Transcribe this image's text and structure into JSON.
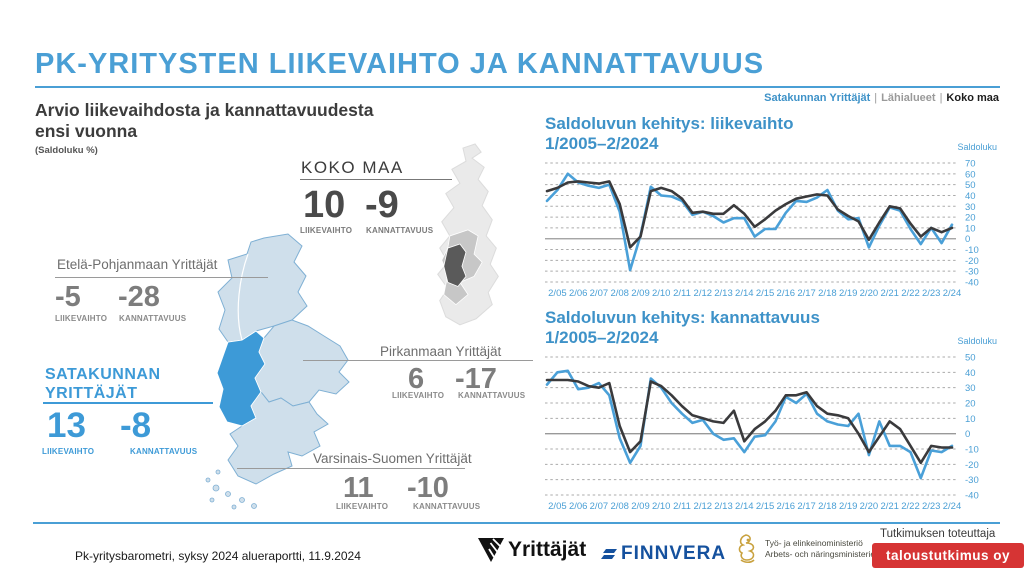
{
  "colors": {
    "accent_blue": "#4A9FD5",
    "chart_title_blue": "#3E92C8",
    "map_highlight": "#3D9AD7",
    "map_light": "#CFDFEB",
    "finnvera_blue": "#15519E",
    "research_red": "#D63434",
    "line_satakunta": "#4AA0D8",
    "line_koko_maa": "#3A3A3C"
  },
  "header": {
    "title": "PK-YRITYSTEN LIIKEVAIHTO JA KANNATTAVUUS",
    "nav_separator": "|",
    "nav": [
      {
        "label": "Satakunnan Yrittäjät"
      },
      {
        "label": "Lähialueet"
      },
      {
        "label": "Koko maa"
      }
    ]
  },
  "left_panel": {
    "subtitle_line1": "Arvio liikevaihdosta ja kannattavuudesta",
    "subtitle_line2": "ensi vuonna",
    "unit_note": "(Saldoluku %)",
    "label_liikevaihto": "LIIKEVAIHTO",
    "label_kannattavuus": "KANNATTAVUUS",
    "regions": {
      "koko_maa": {
        "name": "KOKO MAA",
        "liikevaihto": "10",
        "kannattavuus": "-9"
      },
      "etela_pohjanmaa": {
        "name": "Etelä-Pohjanmaan Yrittäjät",
        "liikevaihto": "-5",
        "kannattavuus": "-28"
      },
      "satakunta": {
        "name_line1": "SATAKUNNAN",
        "name_line2": "YRITTÄJÄT",
        "liikevaihto": "13",
        "kannattavuus": "-8"
      },
      "pirkanmaa": {
        "name": "Pirkanmaan Yrittäjät",
        "liikevaihto": "6",
        "kannattavuus": "-17"
      },
      "varsinais_suomi": {
        "name": "Varsinais-Suomen Yrittäjät",
        "liikevaihto": "11",
        "kannattavuus": "-10"
      }
    }
  },
  "chart_data": [
    {
      "type": "line",
      "title": "Saldoluvun kehitys: liikevaihto",
      "subtitle": "1/2005–2/2024",
      "ylabel": "Saldoluku",
      "ylim": [
        -40,
        70
      ],
      "ytick_step": 10,
      "grid": "dashed-horizontal",
      "legend_position": "none",
      "x_tick_labels": [
        "2/05",
        "2/06",
        "2/07",
        "2/08",
        "2/09",
        "2/10",
        "2/11",
        "2/12",
        "2/13",
        "2/14",
        "2/15",
        "2/16",
        "2/17",
        "2/18",
        "2/19",
        "2/20",
        "2/21",
        "2/22",
        "2/23",
        "2/24"
      ],
      "x_note": "two points per year, 1/2005 through 2/2024",
      "series": [
        {
          "name": "Satakunnan Yrittäjät",
          "color": "#4AA0D8",
          "values": [
            35,
            45,
            60,
            52,
            49,
            47,
            50,
            25,
            -29,
            3,
            48,
            40,
            39,
            35,
            22,
            25,
            21,
            15,
            19,
            19,
            2,
            9,
            9,
            24,
            35,
            34,
            38,
            45,
            26,
            18,
            19,
            -8,
            12,
            29,
            26,
            9,
            -5,
            10,
            -4,
            13
          ]
        },
        {
          "name": "Koko maa",
          "color": "#3A3A3C",
          "values": [
            44,
            47,
            52,
            53,
            52,
            51,
            53,
            32,
            -8,
            2,
            44,
            47,
            44,
            37,
            24,
            25,
            23,
            23,
            31,
            23,
            11,
            18,
            26,
            32,
            37,
            39,
            41,
            40,
            27,
            21,
            16,
            -1,
            15,
            30,
            28,
            14,
            2,
            10,
            6,
            10
          ]
        }
      ]
    },
    {
      "type": "line",
      "title": "Saldoluvun kehitys: kannattavuus",
      "subtitle": "1/2005–2/2024",
      "ylabel": "Saldoluku",
      "ylim": [
        -40,
        50
      ],
      "ytick_step": 10,
      "grid": "dashed-horizontal",
      "legend_position": "none",
      "x_tick_labels": [
        "2/05",
        "2/06",
        "2/07",
        "2/08",
        "2/09",
        "2/10",
        "2/11",
        "2/12",
        "2/13",
        "2/14",
        "2/15",
        "2/16",
        "2/17",
        "2/18",
        "2/19",
        "2/20",
        "2/21",
        "2/22",
        "2/23",
        "2/24"
      ],
      "x_note": "two points per year, 1/2005 through 2/2024",
      "series": [
        {
          "name": "Satakunnan Yrittäjät",
          "color": "#4AA0D8",
          "values": [
            32,
            40,
            41,
            29,
            30,
            33,
            25,
            -3,
            -19,
            -8,
            36,
            30,
            20,
            13,
            7,
            9,
            0,
            -4,
            -3,
            -12,
            -2,
            -1,
            8,
            24,
            20,
            26,
            13,
            8,
            6,
            5,
            13,
            -14,
            8,
            -8,
            -8,
            -12,
            -29,
            -11,
            -12,
            -8
          ]
        },
        {
          "name": "Koko maa",
          "color": "#3A3A3C",
          "values": [
            35,
            35,
            35,
            34,
            31,
            30,
            33,
            5,
            -12,
            -5,
            34,
            31,
            25,
            18,
            12,
            10,
            8,
            7,
            15,
            -5,
            3,
            8,
            15,
            25,
            25,
            27,
            18,
            13,
            12,
            10,
            0,
            -12,
            -2,
            8,
            3,
            -8,
            -19,
            -8,
            -9,
            -9
          ]
        }
      ]
    }
  ],
  "footer": {
    "report_label": "Pk-yritysbarometri, syksy 2024 alueraportti, 11.9.2024",
    "logo_yrittajat": "Yrittäjät",
    "logo_finnvera": "FINNVERA",
    "ministry_line1": "Työ- ja elinkeinoministeriö",
    "ministry_line2": "Arbets- och näringsministeriet",
    "research_by_label": "Tutkimuksen toteuttaja",
    "research_company": "taloustutkimus oy"
  }
}
